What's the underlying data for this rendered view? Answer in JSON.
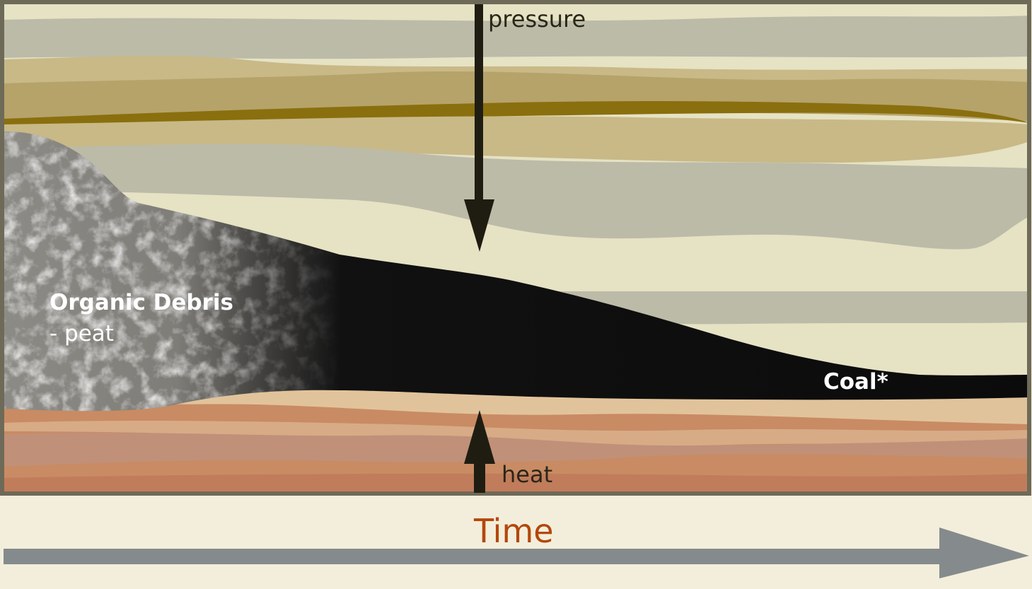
{
  "labels": {
    "pressure": "pressure",
    "heat": "heat",
    "organic_debris": "Organic Debris",
    "peat": "- peat",
    "coal": "Coal*",
    "time": "Time"
  },
  "colors": {
    "background": "#f3eedb",
    "frame": "#6e6a58",
    "cream_layer": "#e6e2c4",
    "gray_layer": "#bcbba8",
    "tan_layer": "#c8b987",
    "olive_layer": "#b6a36a",
    "dark_stripe": "#8a6f0e",
    "orange_layer": "#c98b63",
    "peach_layer": "#e1c39b",
    "coal": "#0b0b0b",
    "arrow": "#1f1d12",
    "time_arrow": "#858a8c",
    "time_text": "#b4470b"
  },
  "icons": {
    "pressure_arrow": "arrow-down-icon",
    "heat_arrow": "arrow-up-icon",
    "time_arrow": "arrow-right-icon"
  }
}
